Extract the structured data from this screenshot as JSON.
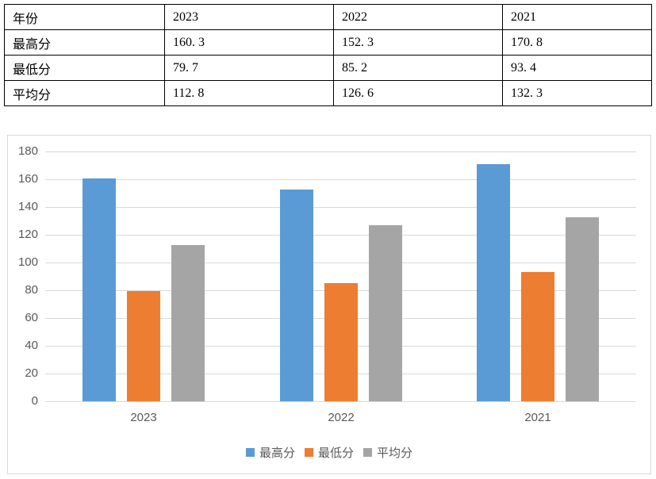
{
  "table": {
    "rows": [
      [
        "年份",
        "2023",
        "2022",
        "2021"
      ],
      [
        "最高分",
        "160. 3",
        "152. 3",
        "170. 8"
      ],
      [
        "最低分",
        "79. 7",
        "85. 2",
        "93. 4"
      ],
      [
        "平均分",
        "112. 8",
        "126. 6",
        "132. 3"
      ]
    ]
  },
  "chart_data": {
    "type": "bar",
    "title": "",
    "xlabel": "",
    "ylabel": "",
    "categories": [
      "2023",
      "2022",
      "2021"
    ],
    "series": [
      {
        "name": "最高分",
        "color": "#5b9bd5",
        "values": [
          160.3,
          152.3,
          170.8
        ]
      },
      {
        "name": "最低分",
        "color": "#ed7d31",
        "values": [
          79.7,
          85.2,
          93.4
        ]
      },
      {
        "name": "平均分",
        "color": "#a5a5a5",
        "values": [
          112.8,
          126.6,
          132.3
        ]
      }
    ],
    "ylim": [
      0,
      180
    ],
    "ytick_step": 20,
    "yticks": [
      "0",
      "20",
      "40",
      "60",
      "80",
      "100",
      "120",
      "140",
      "160",
      "180"
    ],
    "grid": true,
    "legend_position": "bottom"
  },
  "colors": {
    "axis_text": "#595959",
    "gridline": "#d9d9d9",
    "chart_border": "#d9d9d9",
    "table_border": "#000000",
    "background": "#ffffff"
  }
}
